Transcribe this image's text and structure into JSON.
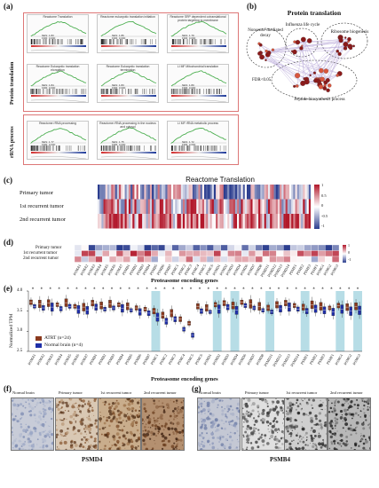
{
  "panels": {
    "a": "(a)",
    "b": "(b)",
    "c": "(c)",
    "d": "(d)",
    "e": "(e)",
    "f": "(f)",
    "g": "(g)"
  },
  "panel_a": {
    "group_labels": [
      "Protein translation",
      "rRNA process"
    ],
    "plots": [
      {
        "title": "Reactome Translation",
        "stat": "NES: 1.83\nFDR: 0.000"
      },
      {
        "title": "Reactome eukaryotic translation initiation",
        "stat": "NES: 1.86\nFDR: 0.000"
      },
      {
        "title": "Reactome SRP dependent cotranslational protein targeting to membrane",
        "stat": "NES: 1.79\nFDR: 0.000"
      },
      {
        "title": "Reactome Eukaryotic translation elongation",
        "stat": "NES: 1.84\nFDR: 0.000"
      },
      {
        "title": "Reactome Eukaryotic translation termination",
        "stat": "NES: 1.83\nFDR: 0.000"
      },
      {
        "title": "LI MF Mitochondrial translation",
        "stat": "NES: 1.80\nFDR: 0.000"
      },
      {
        "title": "Reactome rRNA processing",
        "stat": "NES: 1.77\nFDR: 0.000"
      },
      {
        "title": "Reactome rRNA processing in the nucleus and cytosol",
        "stat": "NES: 1.75\nFDR: 0.000"
      },
      {
        "title": "LI MF rRNA metabolic process",
        "stat": "NES: 1.72\nFDR: 0.000"
      }
    ]
  },
  "panel_b": {
    "title": "Protein translation",
    "clusters": [
      "Nonsense-mediated decay",
      "Influenza life cycle",
      "Ribosome biogenesis",
      "Peptide biosynthesis process"
    ],
    "fdr": "FDR<0.05"
  },
  "panel_c": {
    "title": "Reactome Translation",
    "rows": [
      "Primary tumor",
      "1st recurrent tumor",
      "2nd recurrent tumor"
    ],
    "legend_ticks": [
      "1",
      "0.5",
      "0",
      "-0.5",
      "-1"
    ]
  },
  "panel_d": {
    "rows": [
      "Primary tumor",
      "1st recurrent tumor",
      "2nd recurrent tumor"
    ],
    "xlabel": "Proteasome encoding genes",
    "legend_ticks": [
      "1",
      "0",
      "-1"
    ],
    "genes": [
      "PSMA1",
      "PSMA2",
      "PSMA3",
      "PSMA4",
      "PSMA5",
      "PSMA6",
      "PSMA7",
      "PSMB1",
      "PSMB2",
      "PSMB3",
      "PSMB4",
      "PSMB5",
      "PSMB6",
      "PSMB7",
      "PSMC1",
      "PSMC2",
      "PSMC3",
      "PSMC4",
      "PSMC5",
      "PSMC6",
      "PSMD1",
      "PSMD2",
      "PSMD3",
      "PSMD4",
      "PSMD6",
      "PSMD7",
      "PSMD8",
      "PSMD11",
      "PSMD12",
      "PSMD13",
      "PSMD14",
      "PSME1",
      "PSME2",
      "PSME3",
      "PSMF1",
      "PSMG1",
      "PSMG2",
      "PSMG3"
    ]
  },
  "chart_data": {
    "type": "boxplot",
    "xlabel": "Proteasome encoding genes",
    "ylabel": "Normalized TPM",
    "ylim": [
      2.5,
      4.0
    ],
    "yticks": [
      "4.0",
      "3.5",
      "3.0",
      "2.5"
    ],
    "legend": [
      "ATRT (n=24)",
      "Normal brain (n=4)"
    ],
    "legend_placement": "bottom-left",
    "series_colors": {
      "atrt": "#8b3a1e",
      "normal": "#1f2fa8"
    },
    "highlight_color": "#b7dde6",
    "annotation_marker": "*",
    "categories": [
      "PSMA1",
      "PSMA2",
      "PSMA3",
      "PSMA4",
      "PSMA5",
      "PSMA6",
      "PSMA7",
      "PSMB1",
      "PSMB2",
      "PSMB3",
      "PSMB4",
      "PSMB5",
      "PSMB6",
      "PSMB7",
      "PSMC1",
      "PSMC2",
      "PSMC3",
      "PSMC4",
      "PSMC5",
      "PSMC6",
      "PSMD1",
      "PSMD2",
      "PSMD3",
      "PSMD4",
      "PSMD6",
      "PSMD7",
      "PSMD8",
      "PSMD11",
      "PSMD12",
      "PSMD13",
      "PSMD14",
      "PSME1",
      "PSME2",
      "PSME3",
      "PSMF1",
      "PSMG1",
      "PSMG2",
      "PSMG3"
    ],
    "highlighted": [
      14,
      21,
      23,
      27,
      31,
      35,
      37
    ],
    "atrt": [
      3.72,
      3.68,
      3.7,
      3.66,
      3.71,
      3.62,
      3.6,
      3.7,
      3.64,
      3.68,
      3.66,
      3.62,
      3.58,
      3.55,
      3.5,
      3.4,
      3.45,
      3.3,
      3.2,
      3.62,
      3.58,
      3.66,
      3.7,
      3.64,
      3.72,
      3.68,
      3.62,
      3.58,
      3.66,
      3.7,
      3.64,
      3.6,
      3.66,
      3.62,
      3.58,
      3.64,
      3.6,
      3.62
    ],
    "normal": [
      3.62,
      3.58,
      3.6,
      3.56,
      3.62,
      3.54,
      3.52,
      3.6,
      3.55,
      3.58,
      3.57,
      3.52,
      3.48,
      3.45,
      3.35,
      3.25,
      3.3,
      3.05,
      2.9,
      3.5,
      3.48,
      3.55,
      3.6,
      3.52,
      3.64,
      3.58,
      3.52,
      3.48,
      3.56,
      3.6,
      3.55,
      3.5,
      3.56,
      3.52,
      3.48,
      3.55,
      3.5,
      3.52
    ]
  },
  "panel_f": {
    "labels": [
      "Normal brain",
      "Primary tumor",
      "1st recurrent tumor",
      "2nd recurrent tumor"
    ],
    "gene": "PSMD4"
  },
  "panel_g": {
    "labels": [
      "Normal brain",
      "Primary tumor",
      "1st recurrent tumor",
      "2nd recurrent tumor"
    ],
    "gene": "PSMB4"
  }
}
